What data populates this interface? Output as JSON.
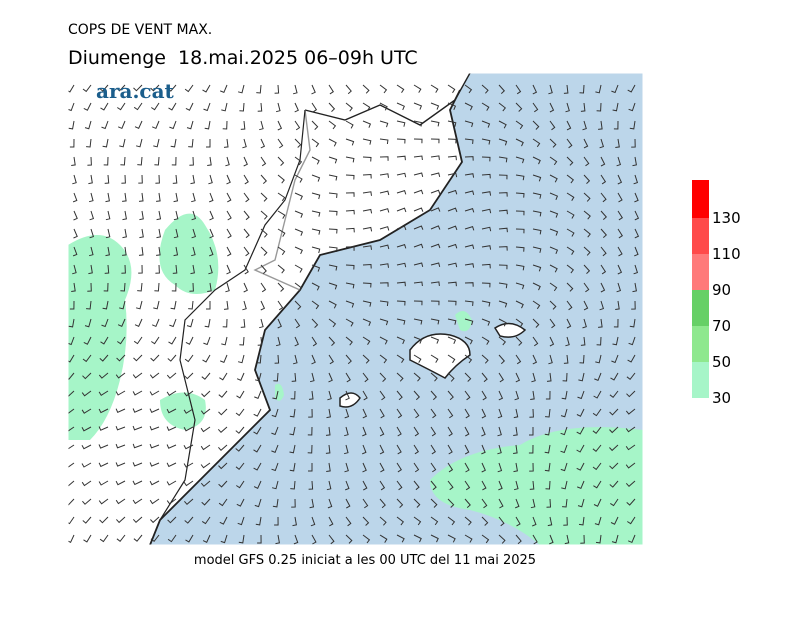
{
  "header": {
    "title": "COPS DE VENT MAX.",
    "subtitle": "Diumenge  18.mai.2025 06–09h UTC",
    "logo": "ara.cat"
  },
  "footer": "model GFS 0.25 iniciat a les 00 UTC del 11 mai 2025",
  "legend": {
    "levels": [
      30,
      50,
      70,
      90,
      110,
      130
    ],
    "colors": [
      "#a6f5c8",
      "#8ee88e",
      "#66d066",
      "#ff7a7a",
      "#ff4a4a",
      "#ff0000"
    ]
  }
}
